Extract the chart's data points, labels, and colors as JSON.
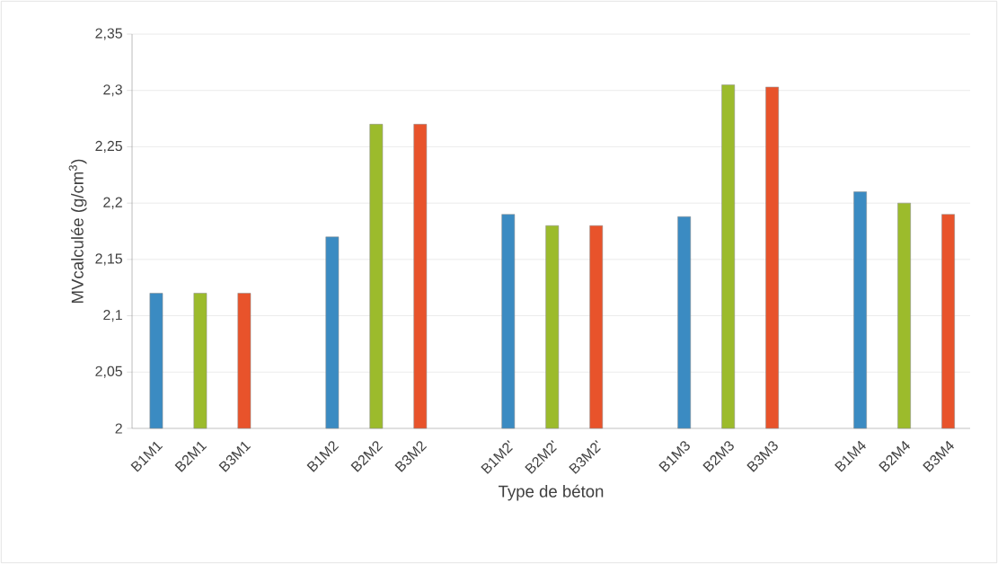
{
  "chart_data": {
    "type": "bar",
    "xlabel": "Type de béton",
    "ylabel": "MVcalculée (g/cm$^{3}$)",
    "categories": [
      "B1M1",
      "B2M1",
      "B3M1",
      null,
      "B1M2",
      "B2M2",
      "B3M2",
      null,
      "B1M2'",
      "B2M2'",
      "B3M2'",
      null,
      "B1M3",
      "B2M3",
      "B3M3",
      null,
      "B1M4",
      "B2M4",
      "B3M4"
    ],
    "values": [
      2.12,
      2.12,
      2.12,
      null,
      2.17,
      2.27,
      2.27,
      null,
      2.19,
      2.18,
      2.18,
      null,
      2.188,
      2.305,
      2.303,
      null,
      2.21,
      2.2,
      2.19
    ],
    "colors": [
      "#3b8bc2",
      "#9cbb2c",
      "#e8532b",
      null,
      "#3b8bc2",
      "#9cbb2c",
      "#e8532b",
      null,
      "#3b8bc2",
      "#9cbb2c",
      "#e8532b",
      null,
      "#3b8bc2",
      "#9cbb2c",
      "#e8532b",
      null,
      "#3b8bc2",
      "#9cbb2c",
      "#e8532b"
    ],
    "ylim": [
      2,
      2.35
    ],
    "yticks": [
      {
        "value": 2,
        "label": "2"
      },
      {
        "value": 2.05,
        "label": "2,05"
      },
      {
        "value": 2.1,
        "label": "2,1"
      },
      {
        "value": 2.15,
        "label": "2,15"
      },
      {
        "value": 2.2,
        "label": "2,2"
      },
      {
        "value": 2.25,
        "label": "2,25"
      },
      {
        "value": 2.3,
        "label": "2,3"
      },
      {
        "value": 2.35,
        "label": "2,35"
      }
    ],
    "grid": "y"
  }
}
